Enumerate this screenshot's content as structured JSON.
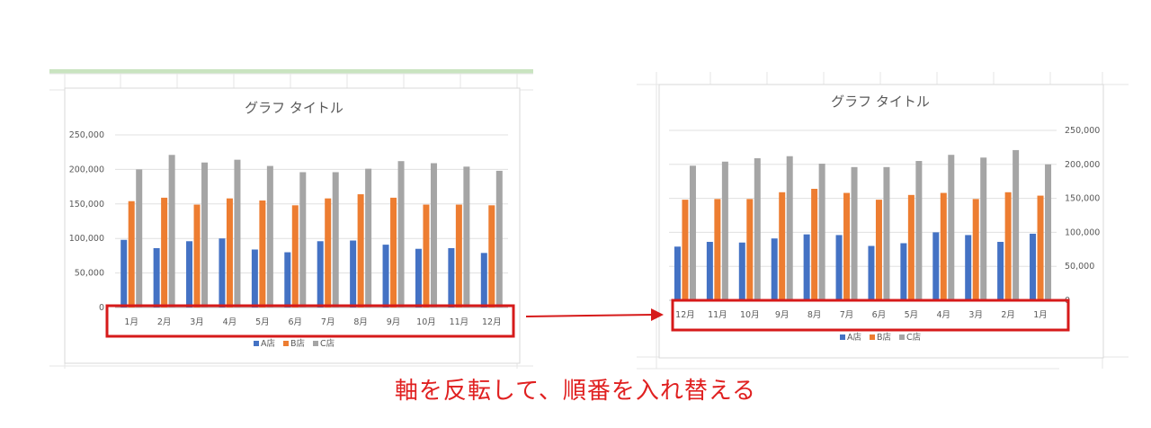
{
  "chart_data": [
    {
      "type": "bar",
      "title": "グラフ タイトル",
      "categories": [
        "1月",
        "2月",
        "3月",
        "4月",
        "5月",
        "6月",
        "7月",
        "8月",
        "9月",
        "10月",
        "11月",
        "12月"
      ],
      "series": [
        {
          "name": "A店",
          "values": [
            98000,
            86000,
            96000,
            100000,
            84000,
            80000,
            96000,
            97000,
            91000,
            85000,
            86000,
            79000
          ]
        },
        {
          "name": "B店",
          "values": [
            154000,
            159000,
            149000,
            158000,
            155000,
            148000,
            158000,
            164000,
            159000,
            149000,
            149000,
            148000
          ]
        },
        {
          "name": "C店",
          "values": [
            200000,
            221000,
            210000,
            214000,
            205000,
            196000,
            196000,
            201000,
            212000,
            209000,
            204000,
            198000
          ]
        }
      ],
      "y_ticks": [
        "0",
        "50,000",
        "100,000",
        "150,000",
        "200,000",
        "250,000"
      ],
      "ylim": [
        0,
        250000
      ],
      "y_axis_side": "left",
      "x_order": "normal",
      "legend": "bottom"
    },
    {
      "type": "bar",
      "title": "グラフ タイトル",
      "categories": [
        "12月",
        "11月",
        "10月",
        "9月",
        "8月",
        "7月",
        "6月",
        "5月",
        "4月",
        "3月",
        "2月",
        "1月"
      ],
      "series": [
        {
          "name": "A店",
          "values": [
            79000,
            86000,
            85000,
            91000,
            97000,
            96000,
            80000,
            84000,
            100000,
            96000,
            86000,
            98000
          ]
        },
        {
          "name": "B店",
          "values": [
            148000,
            149000,
            149000,
            159000,
            164000,
            158000,
            148000,
            155000,
            158000,
            149000,
            159000,
            154000
          ]
        },
        {
          "name": "C店",
          "values": [
            198000,
            204000,
            209000,
            212000,
            201000,
            196000,
            196000,
            205000,
            214000,
            210000,
            221000,
            200000
          ]
        }
      ],
      "y_ticks": [
        "0",
        "50,000",
        "100,000",
        "150,000",
        "200,000",
        "250,000"
      ],
      "ylim": [
        0,
        250000
      ],
      "y_axis_side": "right",
      "x_order": "reversed",
      "legend": "bottom"
    }
  ],
  "colors": {
    "A店": "#4472c4",
    "B店": "#ed7d31",
    "C店": "#a5a5a5",
    "highlight": "#d61a1a"
  },
  "caption": "軸を反転して、順番を入れ替える"
}
